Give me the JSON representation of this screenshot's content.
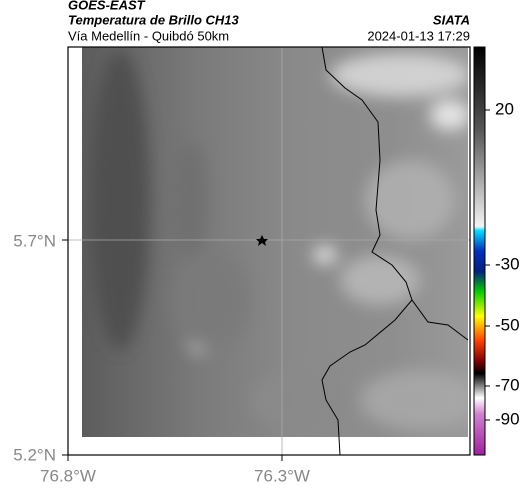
{
  "header": {
    "satellite": "GOES-EAST",
    "title": "Temperatura de Brillo CH13",
    "source": "SIATA",
    "subtitle": "Vía Medellín - Quibdó 50km",
    "timestamp": "2024-01-13 17:29"
  },
  "map": {
    "xticks": [
      "76.8°W",
      "76.3°W"
    ],
    "yticks": [
      "5.7°N",
      "5.2°N"
    ]
  },
  "colorbar": {
    "ticks": [
      20,
      -30,
      -50,
      -70,
      -90
    ]
  }
}
